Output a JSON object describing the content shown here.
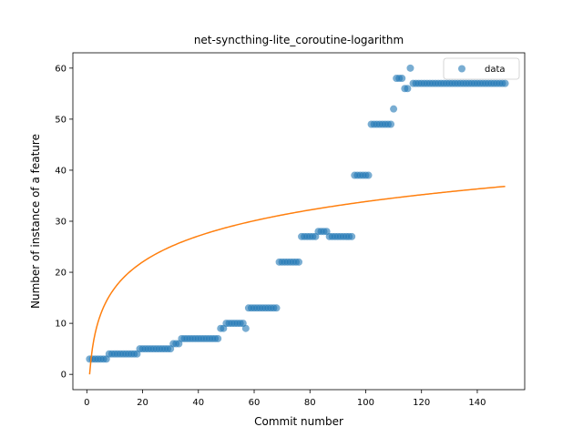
{
  "chart_data": {
    "type": "scatter",
    "title": "net-syncthing-lite_coroutine-logarithm",
    "xlabel": "Commit number",
    "ylabel": "Number of instance of a feature",
    "xlim": [
      -5,
      157
    ],
    "ylim": [
      -3,
      63
    ],
    "xticks": [
      0,
      20,
      40,
      60,
      80,
      100,
      120,
      140
    ],
    "yticks": [
      0,
      10,
      20,
      30,
      40,
      50,
      60
    ],
    "xtick_labels": [
      "0",
      "20",
      "40",
      "60",
      "80",
      "100",
      "120",
      "140"
    ],
    "ytick_labels": [
      "0",
      "10",
      "20",
      "30",
      "40",
      "50",
      "60"
    ],
    "legend": {
      "position": "top-right",
      "entries": [
        "data"
      ]
    },
    "grid": false,
    "series": [
      {
        "name": "data",
        "kind": "scatter",
        "color": "#1f77b4",
        "points": [
          [
            1,
            3
          ],
          [
            2,
            3
          ],
          [
            3,
            3
          ],
          [
            4,
            3
          ],
          [
            5,
            3
          ],
          [
            6,
            3
          ],
          [
            7,
            3
          ],
          [
            8,
            4
          ],
          [
            9,
            4
          ],
          [
            10,
            4
          ],
          [
            11,
            4
          ],
          [
            12,
            4
          ],
          [
            13,
            4
          ],
          [
            14,
            4
          ],
          [
            15,
            4
          ],
          [
            16,
            4
          ],
          [
            17,
            4
          ],
          [
            18,
            4
          ],
          [
            19,
            5
          ],
          [
            20,
            5
          ],
          [
            21,
            5
          ],
          [
            22,
            5
          ],
          [
            23,
            5
          ],
          [
            24,
            5
          ],
          [
            25,
            5
          ],
          [
            26,
            5
          ],
          [
            27,
            5
          ],
          [
            28,
            5
          ],
          [
            29,
            5
          ],
          [
            30,
            5
          ],
          [
            31,
            6
          ],
          [
            32,
            6
          ],
          [
            33,
            6
          ],
          [
            34,
            7
          ],
          [
            35,
            7
          ],
          [
            36,
            7
          ],
          [
            37,
            7
          ],
          [
            38,
            7
          ],
          [
            39,
            7
          ],
          [
            40,
            7
          ],
          [
            41,
            7
          ],
          [
            42,
            7
          ],
          [
            43,
            7
          ],
          [
            44,
            7
          ],
          [
            45,
            7
          ],
          [
            46,
            7
          ],
          [
            47,
            7
          ],
          [
            48,
            9
          ],
          [
            49,
            9
          ],
          [
            50,
            10
          ],
          [
            51,
            10
          ],
          [
            52,
            10
          ],
          [
            53,
            10
          ],
          [
            54,
            10
          ],
          [
            55,
            10
          ],
          [
            56,
            10
          ],
          [
            57,
            9
          ],
          [
            58,
            13
          ],
          [
            59,
            13
          ],
          [
            60,
            13
          ],
          [
            61,
            13
          ],
          [
            62,
            13
          ],
          [
            63,
            13
          ],
          [
            64,
            13
          ],
          [
            65,
            13
          ],
          [
            66,
            13
          ],
          [
            67,
            13
          ],
          [
            68,
            13
          ],
          [
            69,
            22
          ],
          [
            70,
            22
          ],
          [
            71,
            22
          ],
          [
            72,
            22
          ],
          [
            73,
            22
          ],
          [
            74,
            22
          ],
          [
            75,
            22
          ],
          [
            76,
            22
          ],
          [
            77,
            27
          ],
          [
            78,
            27
          ],
          [
            79,
            27
          ],
          [
            80,
            27
          ],
          [
            81,
            27
          ],
          [
            82,
            27
          ],
          [
            83,
            28
          ],
          [
            84,
            28
          ],
          [
            85,
            28
          ],
          [
            86,
            28
          ],
          [
            87,
            27
          ],
          [
            88,
            27
          ],
          [
            89,
            27
          ],
          [
            90,
            27
          ],
          [
            91,
            27
          ],
          [
            92,
            27
          ],
          [
            93,
            27
          ],
          [
            94,
            27
          ],
          [
            95,
            27
          ],
          [
            96,
            39
          ],
          [
            97,
            39
          ],
          [
            98,
            39
          ],
          [
            99,
            39
          ],
          [
            100,
            39
          ],
          [
            101,
            39
          ],
          [
            102,
            49
          ],
          [
            103,
            49
          ],
          [
            104,
            49
          ],
          [
            105,
            49
          ],
          [
            106,
            49
          ],
          [
            107,
            49
          ],
          [
            108,
            49
          ],
          [
            109,
            49
          ],
          [
            110,
            52
          ],
          [
            111,
            58
          ],
          [
            112,
            58
          ],
          [
            113,
            58
          ],
          [
            114,
            56
          ],
          [
            115,
            56
          ],
          [
            116,
            60
          ],
          [
            117,
            57
          ],
          [
            118,
            57
          ],
          [
            119,
            57
          ],
          [
            120,
            57
          ],
          [
            121,
            57
          ],
          [
            122,
            57
          ],
          [
            123,
            57
          ],
          [
            124,
            57
          ],
          [
            125,
            57
          ],
          [
            126,
            57
          ],
          [
            127,
            57
          ],
          [
            128,
            57
          ],
          [
            129,
            57
          ],
          [
            130,
            57
          ],
          [
            131,
            57
          ],
          [
            132,
            57
          ],
          [
            133,
            57
          ],
          [
            134,
            57
          ],
          [
            135,
            57
          ],
          [
            136,
            57
          ],
          [
            137,
            57
          ],
          [
            138,
            57
          ],
          [
            139,
            57
          ],
          [
            140,
            57
          ],
          [
            141,
            57
          ],
          [
            142,
            57
          ],
          [
            143,
            57
          ],
          [
            144,
            57
          ],
          [
            145,
            57
          ],
          [
            146,
            57
          ],
          [
            147,
            57
          ],
          [
            148,
            57
          ],
          [
            149,
            57
          ],
          [
            150,
            57
          ]
        ]
      },
      {
        "name": "",
        "kind": "line",
        "color": "#ff7f0e",
        "fit": {
          "model": "a*ln(x)",
          "a": 7.35
        },
        "x_range": [
          1,
          150
        ]
      }
    ]
  }
}
